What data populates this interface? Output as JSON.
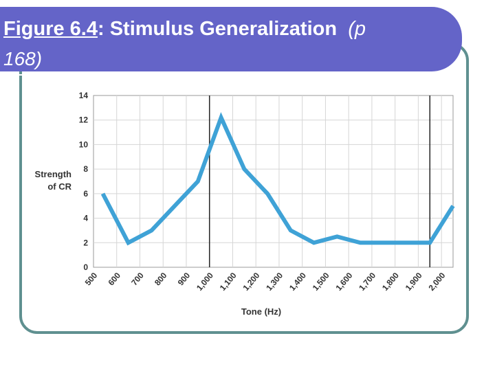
{
  "slide": {
    "title_fig": "Figure 6.4",
    "title_rest": ": Stimulus Generalization",
    "title_page_prefix": "(p",
    "title_page_line2": "168)"
  },
  "colors": {
    "banner": "#6464c8",
    "frame": "#5f9090",
    "line": "#3fa2d6",
    "grid": "#d5d5d5",
    "axis_text": "#333333"
  },
  "chart_data": {
    "type": "line",
    "title": "",
    "xlabel": "Tone (Hz)",
    "ylabel_lines": [
      "Strength",
      "of CR"
    ],
    "x": [
      500,
      600,
      700,
      800,
      900,
      1000,
      1100,
      1200,
      1300,
      1400,
      1500,
      1600,
      1700,
      1800,
      1900,
      2000
    ],
    "xtick_labels": [
      "500",
      "600",
      "700",
      "800",
      "900",
      "1,000",
      "1,100",
      "1,200",
      "1,300",
      "1,400",
      "1,500",
      "1,600",
      "1,700",
      "1,800",
      "1,900",
      "2,000"
    ],
    "xlim": [
      500,
      2050
    ],
    "ylim": [
      0,
      14
    ],
    "yticks": [
      0,
      2,
      4,
      6,
      8,
      10,
      12,
      14
    ],
    "grid": true,
    "reference_lines_x": [
      1000,
      1950
    ],
    "series": [
      {
        "x": [
          540,
          650,
          750,
          850,
          950,
          1050,
          1150,
          1250,
          1350,
          1450,
          1550,
          1650,
          1750,
          1850,
          1950,
          2050
        ],
        "values": [
          6,
          2,
          3,
          5,
          7,
          12.2,
          8,
          6,
          3,
          2,
          2.5,
          2,
          2,
          2,
          2,
          5
        ]
      }
    ]
  }
}
